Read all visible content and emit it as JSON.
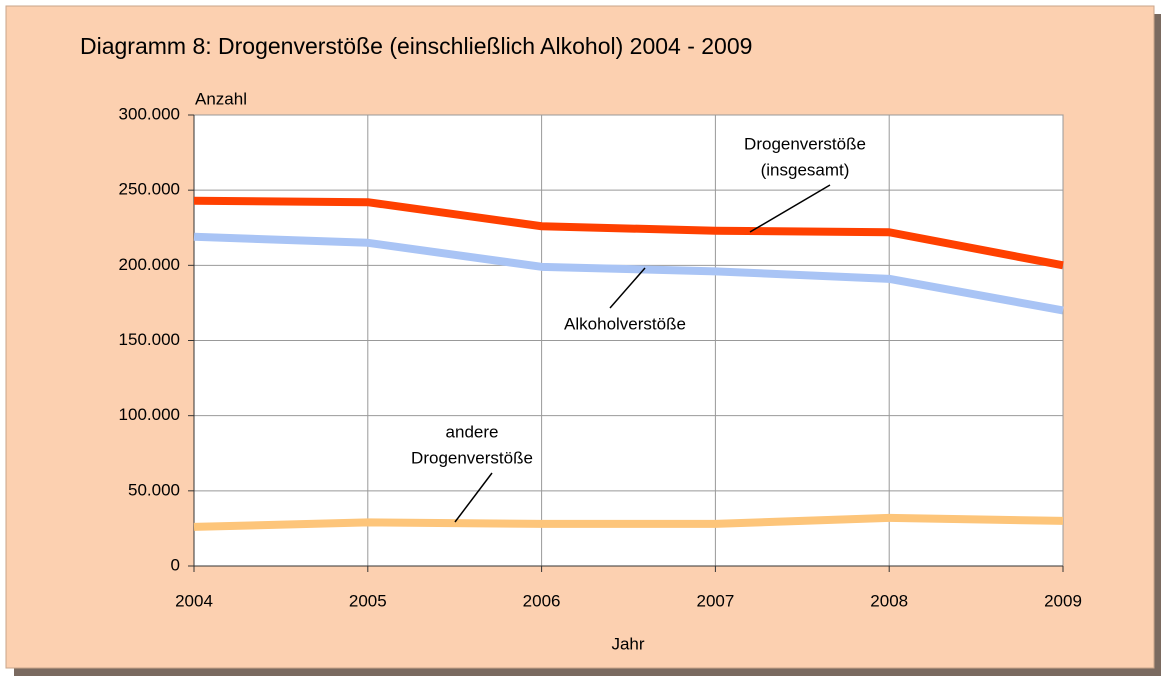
{
  "chart_data": {
    "type": "line",
    "title": "Diagramm 8: Drogenverstöße (einschließlich Alkohol) 2004 - 2009",
    "y_label": "Anzahl",
    "x_label": "Jahr",
    "x": [
      2004,
      2005,
      2006,
      2007,
      2008,
      2009
    ],
    "xlim": [
      2004,
      2009
    ],
    "xticks": [
      2004,
      2005,
      2006,
      2007,
      2008,
      2009
    ],
    "ylim": [
      0,
      300000
    ],
    "yticks": [
      0,
      {
        "value": 50000,
        "label": "50.000"
      },
      {
        "value": 100000,
        "label": "100.000"
      },
      {
        "value": 150000,
        "label": "150.000"
      },
      {
        "value": 200000,
        "label": "200.000"
      },
      {
        "value": 250000,
        "label": "250.000"
      },
      {
        "value": 300000,
        "label": "300.000"
      }
    ],
    "grid": true,
    "series": [
      {
        "label_lines": [
          "Drogenverstöße",
          "(insgesamt)"
        ],
        "color": "#ff4000",
        "values": [
          243000,
          242000,
          226000,
          223000,
          222000,
          200000
        ]
      },
      {
        "label_lines": [
          "Alkoholverstöße"
        ],
        "color": "#a9c4f5",
        "values": [
          219000,
          215000,
          199000,
          196000,
          191000,
          170000
        ]
      },
      {
        "label_lines": [
          "andere",
          "Drogenverstöße"
        ],
        "color": "#fdc57a",
        "values": [
          26000,
          29000,
          28000,
          28000,
          32000,
          30000
        ]
      }
    ]
  }
}
